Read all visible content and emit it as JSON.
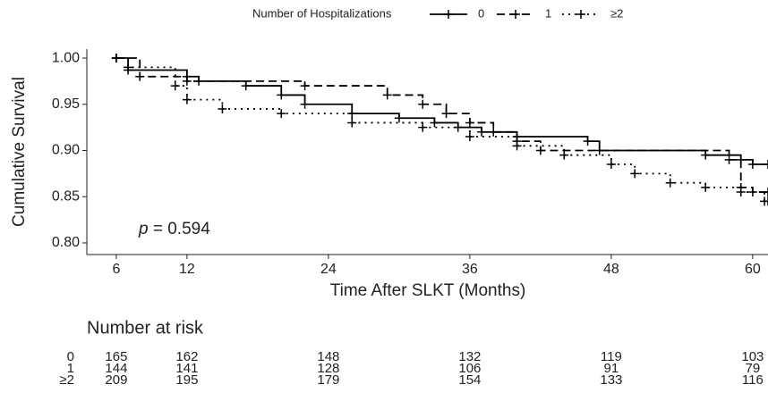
{
  "chart_data": {
    "type": "line",
    "step": true,
    "legend_title": "Number of Hospitalizations",
    "legend_position": "top",
    "xlabel": "Time After SLKT (Months)",
    "ylabel": "Cumulative Survival",
    "annotation_symbol": "p",
    "annotation_text": "= 0.594",
    "xlim": [
      3.5,
      61.3
    ],
    "xticks": [
      6,
      12,
      24,
      36,
      48,
      60
    ],
    "ylim": [
      0.7874,
      1.0097
    ],
    "yticks": [
      {
        "value": 0.8,
        "label": "0.80"
      },
      {
        "value": 0.85,
        "label": "0.85"
      },
      {
        "value": 0.9,
        "label": "0.90"
      },
      {
        "value": 0.95,
        "label": "0.95"
      },
      {
        "value": 1.0,
        "label": "1.00"
      }
    ],
    "series": [
      {
        "name": "0",
        "color": "#000000",
        "dash": "none",
        "x": [
          6,
          7,
          12,
          13,
          17,
          20,
          22,
          26,
          30,
          33,
          35,
          37,
          40,
          46,
          47,
          56,
          59,
          60,
          61.3
        ],
        "values": [
          1.0,
          0.987,
          0.98,
          0.975,
          0.97,
          0.96,
          0.95,
          0.94,
          0.935,
          0.93,
          0.925,
          0.92,
          0.915,
          0.91,
          0.9,
          0.895,
          0.89,
          0.885,
          0.885
        ]
      },
      {
        "name": "1",
        "color": "#000000",
        "dash": "9 5",
        "x": [
          6,
          8,
          12,
          22,
          29,
          32,
          34,
          36,
          38,
          40,
          42,
          58,
          59,
          60,
          61.3
        ],
        "values": [
          1.0,
          0.98,
          0.975,
          0.97,
          0.96,
          0.95,
          0.94,
          0.93,
          0.92,
          0.91,
          0.9,
          0.89,
          0.86,
          0.855,
          0.855
        ]
      },
      {
        "name": "≥2",
        "color": "#000000",
        "dash": "2 5",
        "x": [
          6,
          7,
          11,
          12,
          15,
          20,
          26,
          32,
          36,
          40,
          44,
          48,
          50,
          53,
          56,
          59,
          61,
          61.3
        ],
        "values": [
          1.0,
          0.99,
          0.97,
          0.955,
          0.945,
          0.94,
          0.93,
          0.925,
          0.915,
          0.905,
          0.895,
          0.885,
          0.875,
          0.865,
          0.86,
          0.855,
          0.845,
          0.845
        ]
      }
    ],
    "risk_table": {
      "title": "Number at risk",
      "rows": [
        {
          "counts": [
            165,
            162,
            148,
            132,
            119,
            103
          ]
        },
        {
          "counts": [
            144,
            141,
            128,
            106,
            91,
            79
          ]
        },
        {
          "counts": [
            209,
            195,
            179,
            154,
            133,
            116
          ]
        }
      ]
    }
  }
}
